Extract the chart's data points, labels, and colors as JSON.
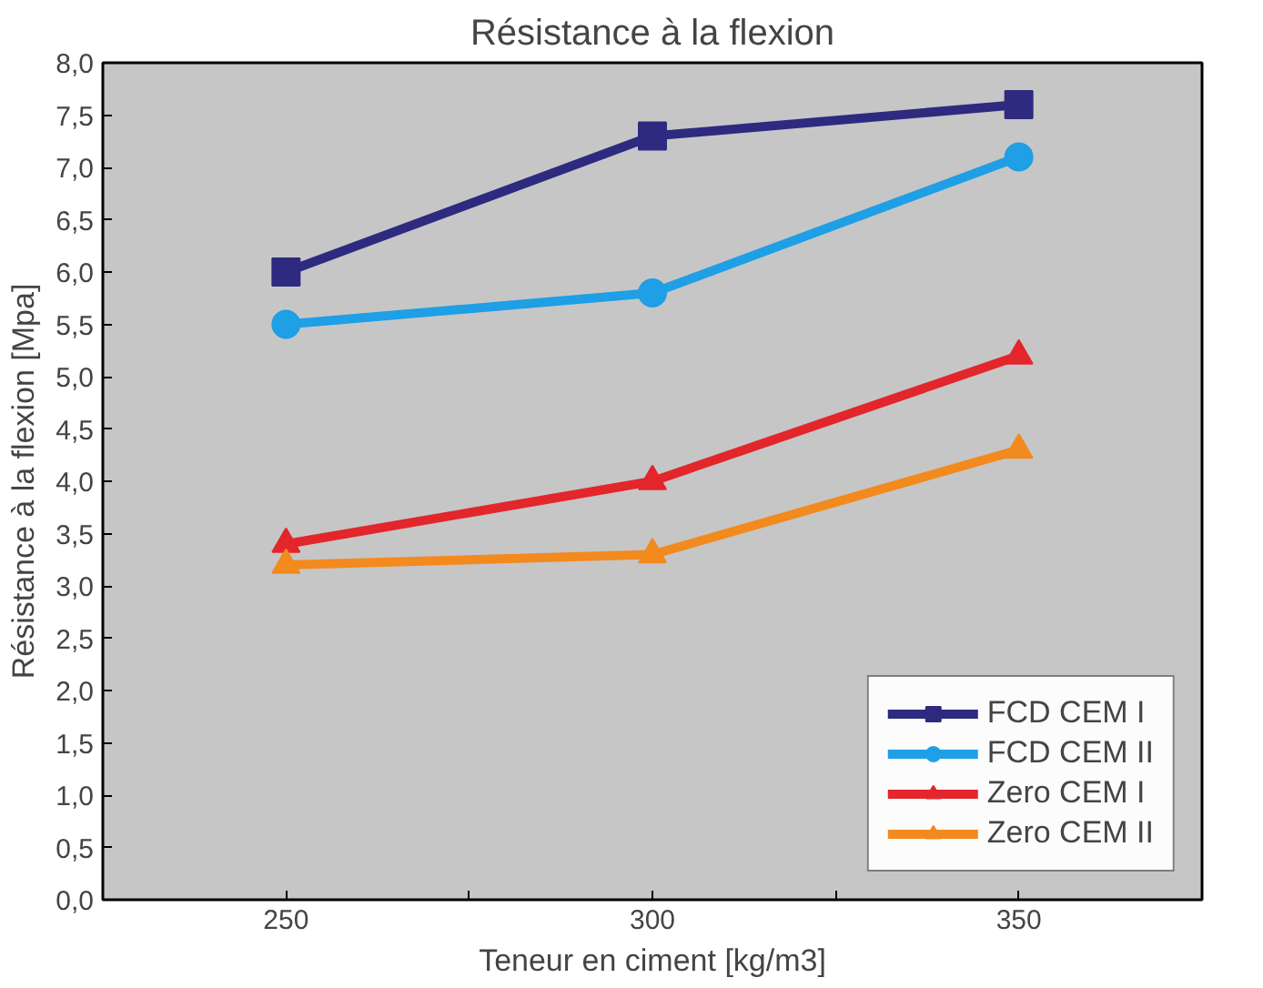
{
  "chart_data": {
    "type": "line",
    "title": "Résistance à la flexion",
    "xlabel": "Teneur en ciment [kg/m3]",
    "ylabel": "Résistance à la flexion [Mpa]",
    "x": [
      250,
      300,
      350
    ],
    "xlim": [
      225,
      375
    ],
    "xticks": [
      250,
      {
        "value": 275,
        "label": null
      },
      300,
      {
        "value": 325,
        "label": null
      },
      350
    ],
    "ylim": [
      0,
      8
    ],
    "yticks": [
      {
        "value": 0,
        "label": "0,0"
      },
      {
        "value": 0.5,
        "label": "0,5"
      },
      {
        "value": 1,
        "label": "1,0"
      },
      {
        "value": 1.5,
        "label": "1,5"
      },
      {
        "value": 2,
        "label": "2,0"
      },
      {
        "value": 2.5,
        "label": "2,5"
      },
      {
        "value": 3,
        "label": "3,0"
      },
      {
        "value": 3.5,
        "label": "3,5"
      },
      {
        "value": 4,
        "label": "4,0"
      },
      {
        "value": 4.5,
        "label": "4,5"
      },
      {
        "value": 5,
        "label": "5,0"
      },
      {
        "value": 5.5,
        "label": "5,5"
      },
      {
        "value": 6,
        "label": "6,0"
      },
      {
        "value": 6.5,
        "label": "6,5"
      },
      {
        "value": 7,
        "label": "7,0"
      },
      {
        "value": 7.5,
        "label": "7,5"
      },
      {
        "value": 8,
        "label": "8,0"
      }
    ],
    "grid": false,
    "legend": "bottom right",
    "line_style": "solid",
    "series": [
      {
        "name": "FCD CEM I",
        "color": "#2e2a80",
        "marker": "square",
        "values": [
          6.0,
          7.3,
          7.6
        ]
      },
      {
        "name": "FCD CEM II",
        "color": "#1e9fe6",
        "marker": "circle",
        "values": [
          5.5,
          5.8,
          7.1
        ]
      },
      {
        "name": "Zero CEM I",
        "color": "#e2262b",
        "marker": "triangle",
        "values": [
          3.4,
          4.0,
          5.2
        ]
      },
      {
        "name": "Zero CEM II",
        "color": "#f28a1e",
        "marker": "triangle",
        "values": [
          3.2,
          3.3,
          4.3
        ]
      }
    ]
  }
}
